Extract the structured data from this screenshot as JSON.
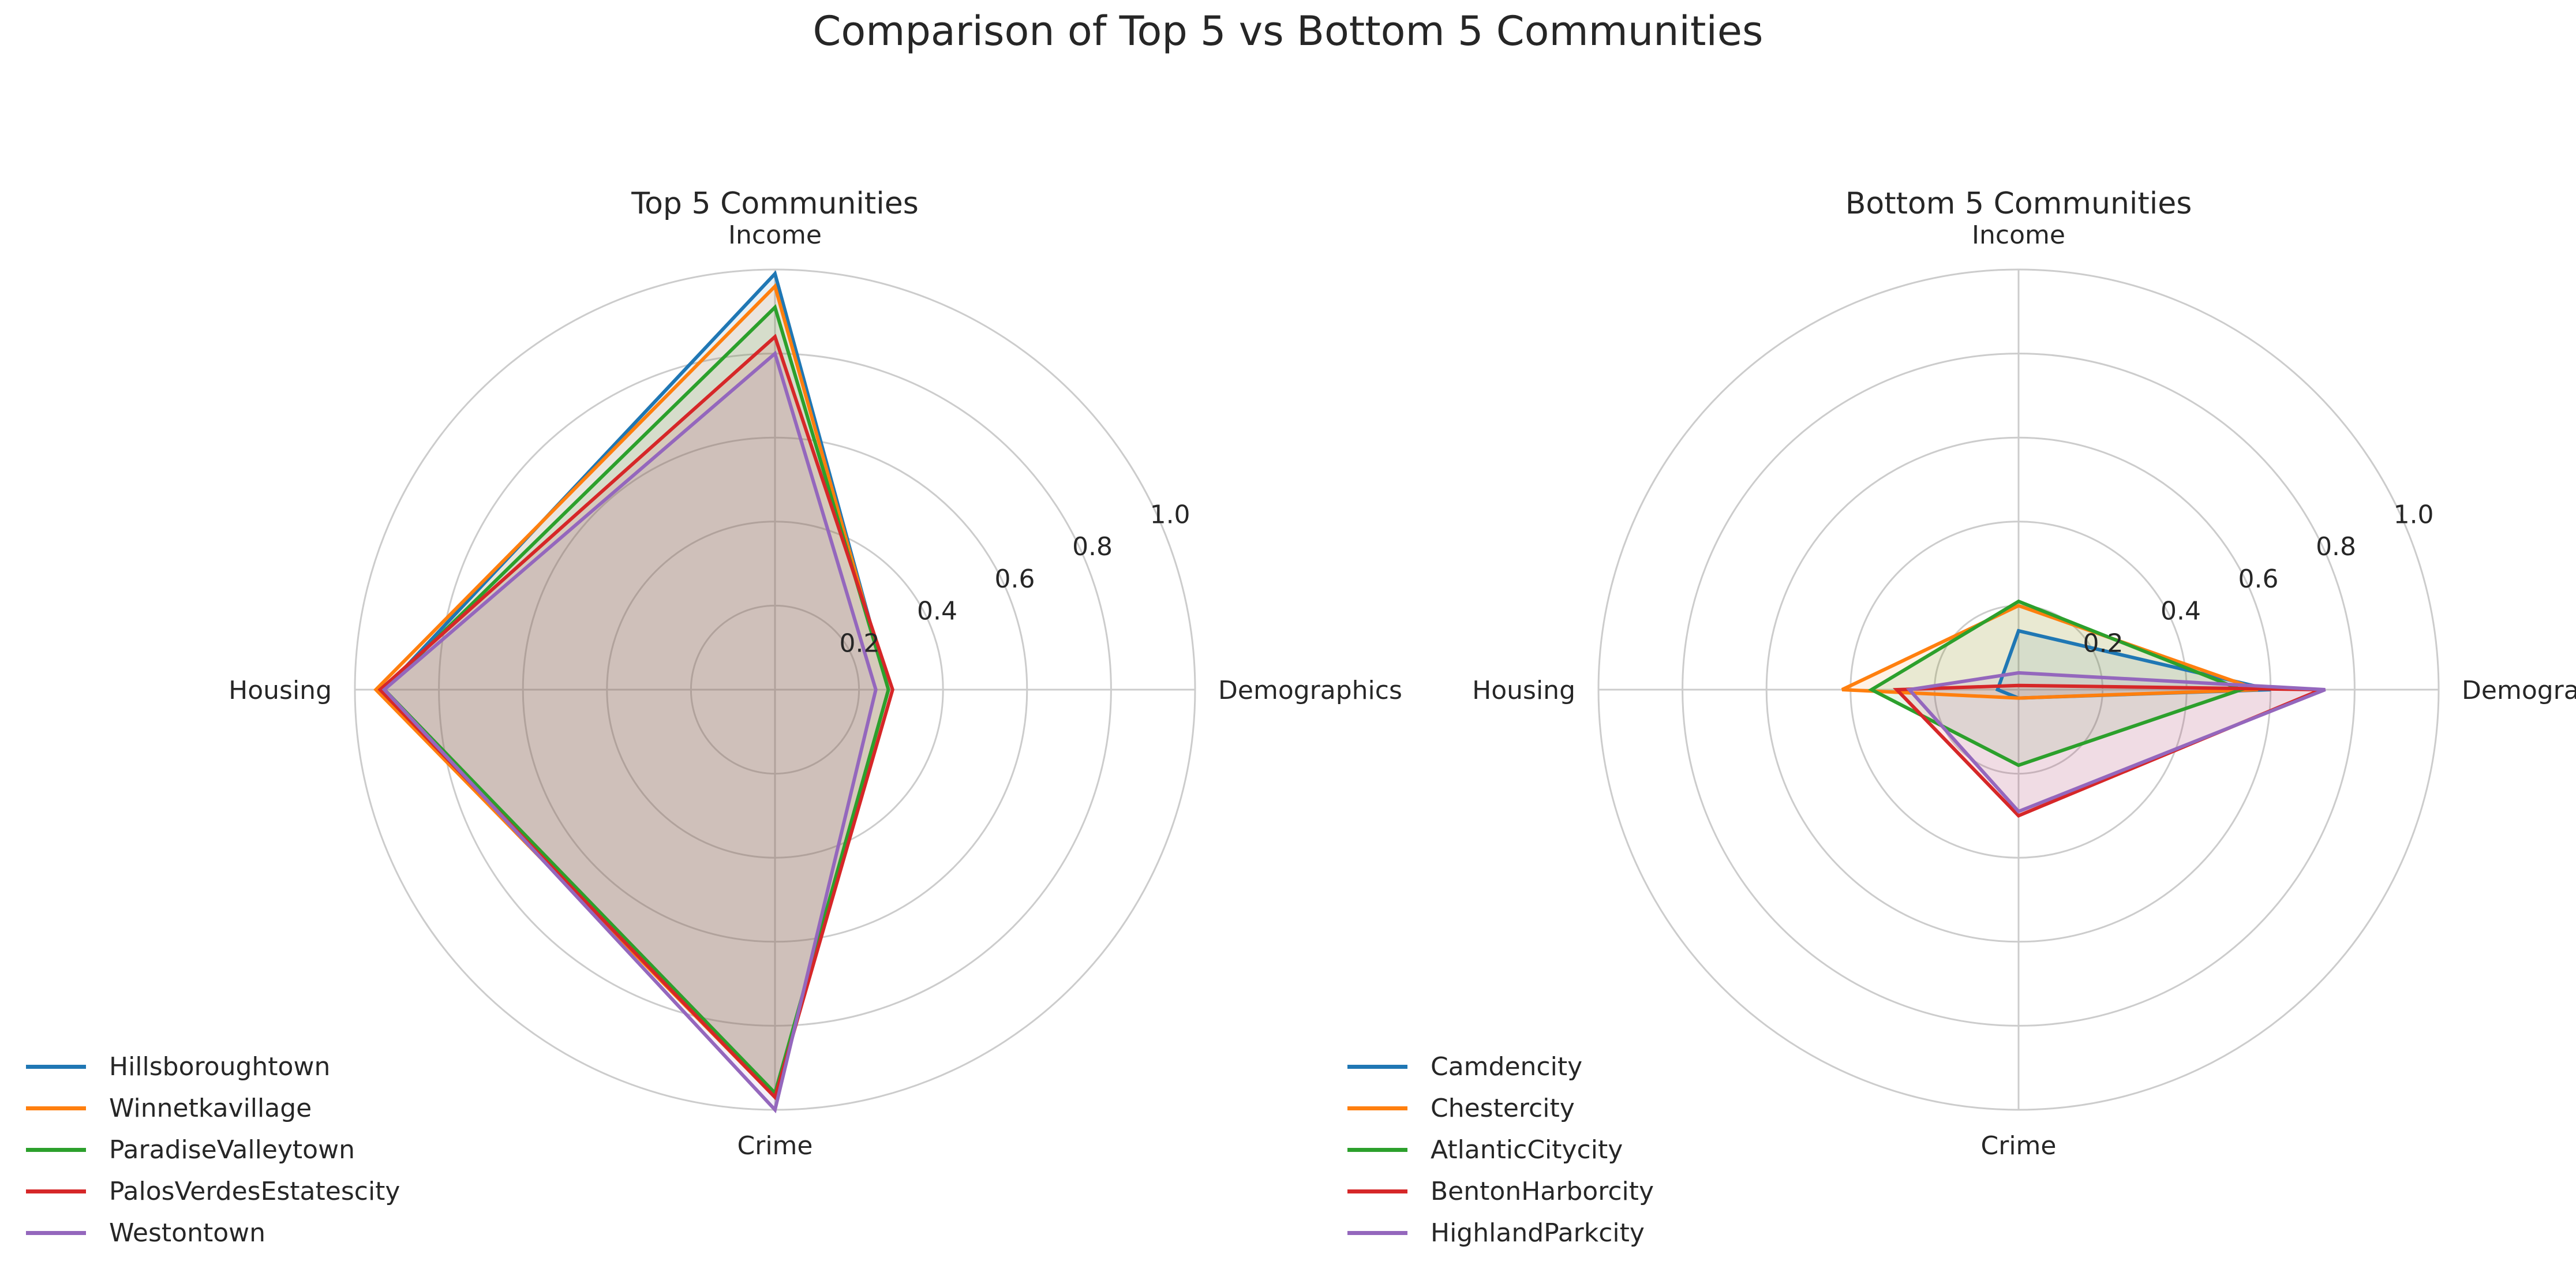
{
  "suptitle": "Comparison of Top 5 vs Bottom 5 Communities",
  "chart_data": [
    {
      "type": "radar",
      "title": "Top 5 Communities",
      "axes": [
        "Income",
        "Demographics",
        "Crime",
        "Housing"
      ],
      "radial_ticks": [
        "0.2",
        "0.4",
        "0.6",
        "0.8",
        "1.0"
      ],
      "rlim": [
        0,
        1
      ],
      "legend_loc": "lower-left",
      "grid": true,
      "series": [
        {
          "name": "Hillsboroughtown",
          "color": "#1f77b4",
          "values": [
            0.99,
            0.27,
            0.97,
            0.93
          ]
        },
        {
          "name": "Winnetkavillage",
          "color": "#ff7f0e",
          "values": [
            0.96,
            0.27,
            0.97,
            0.95
          ]
        },
        {
          "name": "ParadiseValleytown",
          "color": "#2ca02c",
          "values": [
            0.91,
            0.27,
            0.96,
            0.93
          ]
        },
        {
          "name": "PalosVerdesEstatescity",
          "color": "#d62728",
          "values": [
            0.84,
            0.28,
            0.97,
            0.94
          ]
        },
        {
          "name": "Westontown",
          "color": "#9467bd",
          "values": [
            0.8,
            0.24,
            1.0,
            0.93
          ]
        }
      ]
    },
    {
      "type": "radar",
      "title": "Bottom 5 Communities",
      "axes": [
        "Income",
        "Demographics",
        "Crime",
        "Housing"
      ],
      "radial_ticks": [
        "0.2",
        "0.4",
        "0.6",
        "0.8",
        "1.0"
      ],
      "rlim": [
        0,
        1
      ],
      "legend_loc": "lower-left",
      "grid": true,
      "series": [
        {
          "name": "Camdencity",
          "color": "#1f77b4",
          "values": [
            0.14,
            0.6,
            0.02,
            0.05
          ]
        },
        {
          "name": "Chestercity",
          "color": "#ff7f0e",
          "values": [
            0.2,
            0.57,
            0.02,
            0.42
          ]
        },
        {
          "name": "AtlanticCitycity",
          "color": "#2ca02c",
          "values": [
            0.21,
            0.53,
            0.18,
            0.35
          ]
        },
        {
          "name": "BentonHarborcity",
          "color": "#d62728",
          "values": [
            0.01,
            0.72,
            0.3,
            0.29
          ]
        },
        {
          "name": "HighlandParkcity",
          "color": "#9467bd",
          "values": [
            0.04,
            0.73,
            0.29,
            0.26
          ]
        }
      ]
    }
  ]
}
